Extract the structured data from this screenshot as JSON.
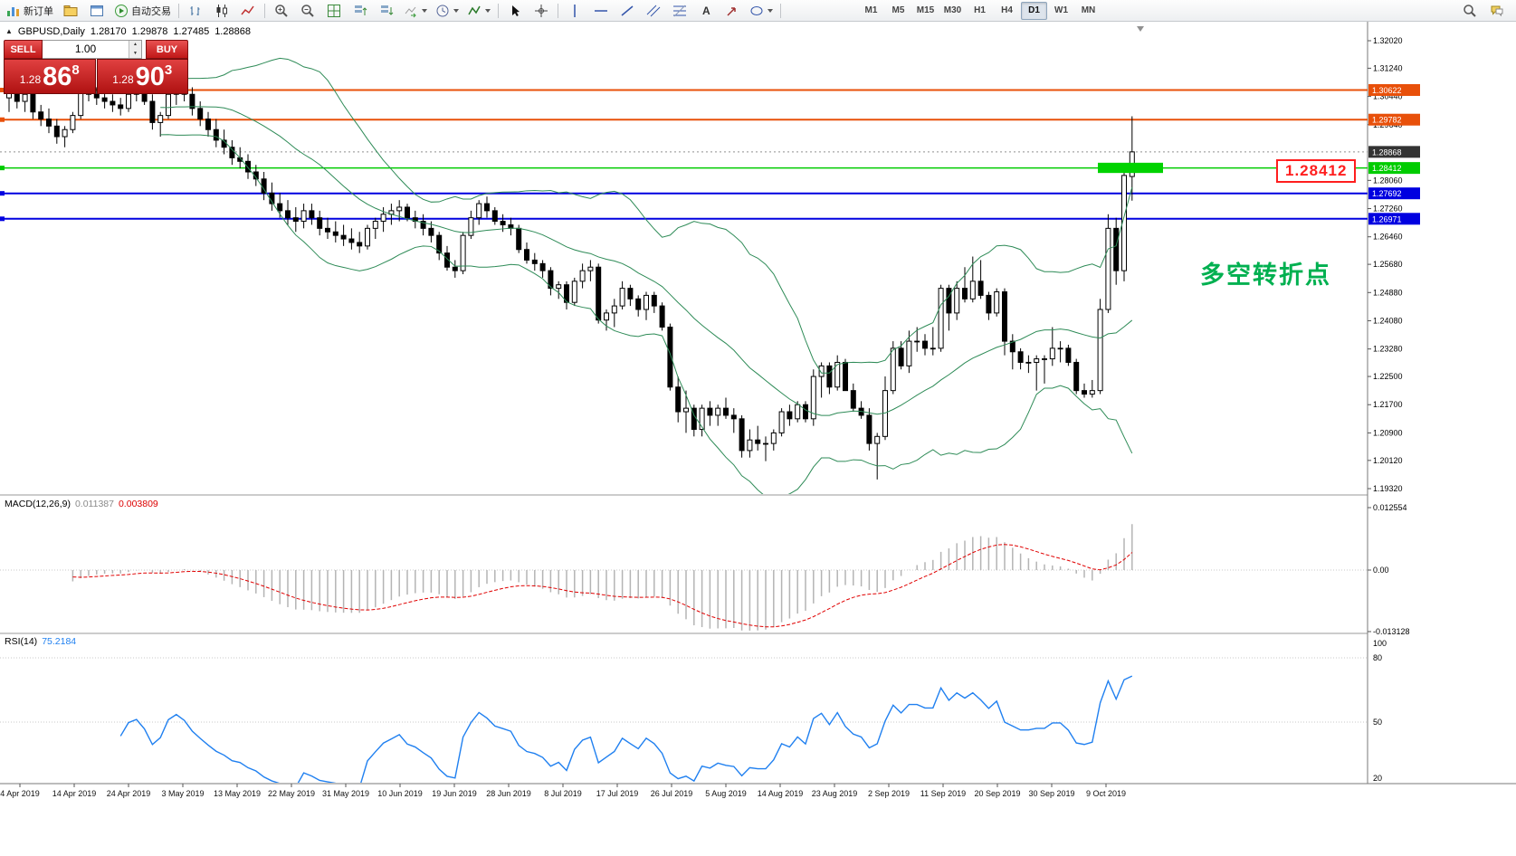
{
  "toolbar": {
    "items": [
      {
        "name": "new-order-button",
        "icon": "new-order-icon",
        "label": "新订单"
      },
      {
        "name": "profiles-button",
        "icon": "profiles-icon"
      },
      {
        "name": "data-window-button",
        "icon": "data-window-icon"
      },
      {
        "name": "auto-trading-button",
        "icon": "play-icon",
        "label": "自动交易"
      },
      {
        "sep": true
      },
      {
        "name": "bar-chart-button",
        "icon": "bar-chart-icon"
      },
      {
        "name": "candlestick-chart-button",
        "icon": "candlestick-icon"
      },
      {
        "name": "line-chart-button",
        "icon": "line-chart-icon"
      },
      {
        "sep": true
      },
      {
        "name": "zoom-in-button",
        "icon": "zoom-in-icon"
      },
      {
        "name": "zoom-out-button",
        "icon": "zoom-out-icon"
      },
      {
        "name": "tile-windows-button",
        "icon": "tile-windows-icon"
      },
      {
        "name": "arrange-up-button",
        "icon": "arrange-up-icon"
      },
      {
        "name": "arrange-down-button",
        "icon": "arrange-down-icon"
      },
      {
        "name": "auto-scroll-button",
        "icon": "auto-scroll-icon",
        "dropdown": true
      },
      {
        "name": "period-button",
        "icon": "clock-icon",
        "dropdown": true
      },
      {
        "name": "indicators-button",
        "icon": "indicators-icon",
        "dropdown": true
      },
      {
        "sep": true
      },
      {
        "name": "cursor-button",
        "icon": "cursor-icon"
      },
      {
        "name": "crosshair-button",
        "icon": "crosshair-icon"
      },
      {
        "sep": true
      },
      {
        "name": "vertical-line-button",
        "icon": "vertical-line-icon"
      },
      {
        "name": "horizontal-line-button",
        "icon": "horizontal-line-icon"
      },
      {
        "name": "trendline-button",
        "icon": "trendline-icon"
      },
      {
        "name": "channel-button",
        "icon": "channel-icon"
      },
      {
        "name": "fibonacci-button",
        "icon": "fibonacci-icon"
      },
      {
        "name": "text-button",
        "icon": "text-icon"
      },
      {
        "name": "arrows-button",
        "icon": "arrows-icon"
      },
      {
        "name": "shapes-button",
        "icon": "shapes-icon",
        "dropdown": true
      },
      {
        "sep": true
      }
    ],
    "timeframes": [
      "M1",
      "M5",
      "M15",
      "M30",
      "H1",
      "H4",
      "D1",
      "W1",
      "MN"
    ],
    "active_timeframe": "D1",
    "right_items": [
      {
        "name": "search-button",
        "icon": "search-icon"
      },
      {
        "name": "chat-button",
        "icon": "chat-icon"
      }
    ]
  },
  "trade_panel": {
    "sell_label": "SELL",
    "buy_label": "BUY",
    "volume": "1.00",
    "sell_price": {
      "prefix": "1.28",
      "big": "86",
      "pip": "8"
    },
    "buy_price": {
      "prefix": "1.28",
      "big": "90",
      "pip": "3"
    }
  },
  "chart": {
    "symbol": "GBPUSD,Daily",
    "open": "1.28170",
    "high": "1.29878",
    "low": "1.27485",
    "close": "1.28868",
    "annotation": "多空转折点",
    "price_alert_label": "1.28412",
    "current_price": {
      "value": 1.28868,
      "label": "1.28868",
      "color": "#333333"
    },
    "levels": [
      {
        "value": 1.30622,
        "label": "1.30622",
        "color": "#e8500a",
        "width": 2
      },
      {
        "value": 1.29782,
        "label": "1.29782",
        "color": "#e8500a",
        "width": 2
      },
      {
        "value": 1.28412,
        "label": "1.28412",
        "color": "#00cc00",
        "width": 1.5
      },
      {
        "value": 1.27692,
        "label": "1.27692",
        "color": "#0000e0",
        "width": 2
      },
      {
        "value": 1.26971,
        "label": "1.26971",
        "color": "#0000e0",
        "width": 2
      }
    ],
    "highlight_rect": {
      "x_from": 1213,
      "x_to": 1285,
      "price_top": 1.2856,
      "price_bottom": 1.2827,
      "color": "#00d300"
    },
    "y_ticks": [
      "1.32020",
      "1.31240",
      "1.30440",
      "1.29640",
      "1.28060",
      "1.27260",
      "1.26460",
      "1.25680",
      "1.24880",
      "1.24080",
      "1.23280",
      "1.22500",
      "1.21700",
      "1.20900",
      "1.20120",
      "1.19320"
    ],
    "dates": [
      "4 Apr 2019",
      "14 Apr 2019",
      "24 Apr 2019",
      "3 May 2019",
      "13 May 2019",
      "22 May 2019",
      "31 May 2019",
      "10 Jun 2019",
      "19 Jun 2019",
      "28 Jun 2019",
      "8 Jul 2019",
      "17 Jul 2019",
      "26 Jul 2019",
      "5 Aug 2019",
      "14 Aug 2019",
      "23 Aug 2019",
      "2 Sep 2019",
      "11 Sep 2019",
      "20 Sep 2019",
      "30 Sep 2019",
      "9 Oct 2019"
    ]
  },
  "macd": {
    "name": "MACD(12,26,9)",
    "main_value": "0.011387",
    "signal_value": "0.003809",
    "axis_labels": [
      "0.012554",
      "0.00",
      "-0.013128"
    ],
    "histogram_color": "#b4b4b4",
    "signal_color": "#e00000"
  },
  "rsi": {
    "name": "RSI(14)",
    "value": "75.2184",
    "axis_labels": [
      "100",
      "80",
      "50",
      "20"
    ],
    "line_color": "#2080f0"
  },
  "chart_data": {
    "type": "candlestick",
    "symbol": "GBPUSD",
    "timeframe": "D1",
    "y_range": [
      1.1932,
      1.3202
    ],
    "x_range_dates": [
      "4 Apr 2019",
      "18 Oct 2019"
    ],
    "indicators": [
      "Bollinger Bands (20,2)",
      "MACD(12,26,9)",
      "RSI(14)"
    ],
    "bb_color": "#2e8b57",
    "candles": [
      [
        1.304,
        1.307,
        1.3,
        1.3055
      ],
      [
        1.3055,
        1.3065,
        1.301,
        1.303
      ],
      [
        1.303,
        1.306,
        1.3,
        1.305
      ],
      [
        1.305,
        1.306,
        1.298,
        1.3
      ],
      [
        1.3,
        1.302,
        1.296,
        1.298
      ],
      [
        1.298,
        1.301,
        1.294,
        1.296
      ],
      [
        1.296,
        1.298,
        1.291,
        1.293
      ],
      [
        1.293,
        1.296,
        1.29,
        1.295
      ],
      [
        1.295,
        1.3,
        1.294,
        1.299
      ],
      [
        1.299,
        1.307,
        1.298,
        1.306
      ],
      [
        1.306,
        1.308,
        1.303,
        1.305
      ],
      [
        1.305,
        1.307,
        1.302,
        1.304
      ],
      [
        1.304,
        1.306,
        1.301,
        1.303
      ],
      [
        1.303,
        1.305,
        1.3,
        1.302
      ],
      [
        1.302,
        1.304,
        1.299,
        1.301
      ],
      [
        1.301,
        1.306,
        1.3,
        1.305
      ],
      [
        1.305,
        1.308,
        1.303,
        1.306
      ],
      [
        1.306,
        1.307,
        1.302,
        1.303
      ],
      [
        1.303,
        1.305,
        1.295,
        1.297
      ],
      [
        1.297,
        1.3,
        1.293,
        1.299
      ],
      [
        1.299,
        1.306,
        1.298,
        1.305
      ],
      [
        1.305,
        1.3085,
        1.302,
        1.307
      ],
      [
        1.307,
        1.308,
        1.303,
        1.305
      ],
      [
        1.305,
        1.307,
        1.299,
        1.301
      ],
      [
        1.301,
        1.303,
        1.296,
        1.298
      ],
      [
        1.298,
        1.3,
        1.293,
        1.295
      ],
      [
        1.295,
        1.298,
        1.29,
        1.292
      ],
      [
        1.292,
        1.295,
        1.288,
        1.29
      ],
      [
        1.29,
        1.292,
        1.285,
        1.287
      ],
      [
        1.287,
        1.29,
        1.284,
        1.286
      ],
      [
        1.286,
        1.288,
        1.281,
        1.283
      ],
      [
        1.283,
        1.285,
        1.279,
        1.281
      ],
      [
        1.281,
        1.283,
        1.275,
        1.277
      ],
      [
        1.277,
        1.28,
        1.272,
        1.274
      ],
      [
        1.274,
        1.277,
        1.27,
        1.272
      ],
      [
        1.272,
        1.275,
        1.268,
        1.27
      ],
      [
        1.27,
        1.273,
        1.266,
        1.269
      ],
      [
        1.269,
        1.274,
        1.267,
        1.272
      ],
      [
        1.272,
        1.274,
        1.268,
        1.27
      ],
      [
        1.27,
        1.272,
        1.265,
        1.267
      ],
      [
        1.267,
        1.27,
        1.264,
        1.266
      ],
      [
        1.266,
        1.269,
        1.263,
        1.265
      ],
      [
        1.265,
        1.268,
        1.262,
        1.264
      ],
      [
        1.264,
        1.267,
        1.261,
        1.263
      ],
      [
        1.263,
        1.266,
        1.26,
        1.262
      ],
      [
        1.262,
        1.268,
        1.261,
        1.267
      ],
      [
        1.267,
        1.27,
        1.264,
        1.269
      ],
      [
        1.269,
        1.273,
        1.266,
        1.271
      ],
      [
        1.271,
        1.274,
        1.268,
        1.272
      ],
      [
        1.272,
        1.275,
        1.269,
        1.273
      ],
      [
        1.273,
        1.274,
        1.269,
        1.27
      ],
      [
        1.27,
        1.272,
        1.267,
        1.269
      ],
      [
        1.269,
        1.271,
        1.265,
        1.267
      ],
      [
        1.267,
        1.269,
        1.263,
        1.265
      ],
      [
        1.265,
        1.266,
        1.258,
        1.26
      ],
      [
        1.26,
        1.262,
        1.255,
        1.256
      ],
      [
        1.256,
        1.258,
        1.253,
        1.255
      ],
      [
        1.255,
        1.266,
        1.254,
        1.265
      ],
      [
        1.265,
        1.272,
        1.264,
        1.27
      ],
      [
        1.27,
        1.275,
        1.268,
        1.274
      ],
      [
        1.274,
        1.276,
        1.27,
        1.272
      ],
      [
        1.272,
        1.273,
        1.268,
        1.269
      ],
      [
        1.269,
        1.271,
        1.266,
        1.268
      ],
      [
        1.268,
        1.27,
        1.265,
        1.267
      ],
      [
        1.267,
        1.268,
        1.26,
        1.261
      ],
      [
        1.261,
        1.263,
        1.257,
        1.258
      ],
      [
        1.258,
        1.26,
        1.255,
        1.257
      ],
      [
        1.257,
        1.258,
        1.253,
        1.255
      ],
      [
        1.255,
        1.256,
        1.248,
        1.25
      ],
      [
        1.25,
        1.252,
        1.247,
        1.251
      ],
      [
        1.251,
        1.252,
        1.244,
        1.246
      ],
      [
        1.246,
        1.253,
        1.245,
        1.252
      ],
      [
        1.252,
        1.257,
        1.25,
        1.255
      ],
      [
        1.255,
        1.258,
        1.252,
        1.256
      ],
      [
        1.256,
        1.257,
        1.24,
        1.241
      ],
      [
        1.241,
        1.244,
        1.238,
        1.243
      ],
      [
        1.243,
        1.247,
        1.239,
        1.245
      ],
      [
        1.245,
        1.252,
        1.244,
        1.25
      ],
      [
        1.25,
        1.251,
        1.245,
        1.247
      ],
      [
        1.247,
        1.248,
        1.242,
        1.244
      ],
      [
        1.244,
        1.249,
        1.241,
        1.248
      ],
      [
        1.248,
        1.249,
        1.243,
        1.245
      ],
      [
        1.245,
        1.246,
        1.238,
        1.239
      ],
      [
        1.239,
        1.24,
        1.221,
        1.222
      ],
      [
        1.222,
        1.225,
        1.212,
        1.215
      ],
      [
        1.215,
        1.221,
        1.209,
        1.216
      ],
      [
        1.216,
        1.217,
        1.208,
        1.21
      ],
      [
        1.21,
        1.217,
        1.208,
        1.216
      ],
      [
        1.216,
        1.218,
        1.211,
        1.214
      ],
      [
        1.214,
        1.217,
        1.211,
        1.216
      ],
      [
        1.216,
        1.219,
        1.213,
        1.214
      ],
      [
        1.214,
        1.216,
        1.209,
        1.213
      ],
      [
        1.213,
        1.214,
        1.202,
        1.204
      ],
      [
        1.204,
        1.21,
        1.202,
        1.207
      ],
      [
        1.207,
        1.211,
        1.204,
        1.206
      ],
      [
        1.206,
        1.208,
        1.201,
        1.206
      ],
      [
        1.206,
        1.21,
        1.204,
        1.209
      ],
      [
        1.209,
        1.216,
        1.208,
        1.215
      ],
      [
        1.215,
        1.217,
        1.211,
        1.213
      ],
      [
        1.213,
        1.218,
        1.212,
        1.217
      ],
      [
        1.217,
        1.218,
        1.212,
        1.213
      ],
      [
        1.213,
        1.227,
        1.211,
        1.225
      ],
      [
        1.225,
        1.229,
        1.219,
        1.228
      ],
      [
        1.228,
        1.229,
        1.22,
        1.222
      ],
      [
        1.222,
        1.231,
        1.221,
        1.229
      ],
      [
        1.229,
        1.23,
        1.221,
        1.221
      ],
      [
        1.221,
        1.223,
        1.215,
        1.216
      ],
      [
        1.216,
        1.218,
        1.213,
        1.214
      ],
      [
        1.214,
        1.216,
        1.204,
        1.206
      ],
      [
        1.206,
        1.209,
        1.1958,
        1.208
      ],
      [
        1.208,
        1.225,
        1.207,
        1.221
      ],
      [
        1.221,
        1.235,
        1.22,
        1.233
      ],
      [
        1.233,
        1.235,
        1.227,
        1.228
      ],
      [
        1.228,
        1.238,
        1.226,
        1.235
      ],
      [
        1.235,
        1.239,
        1.232,
        1.235
      ],
      [
        1.235,
        1.237,
        1.231,
        1.233
      ],
      [
        1.233,
        1.239,
        1.231,
        1.233
      ],
      [
        1.233,
        1.251,
        1.232,
        1.25
      ],
      [
        1.25,
        1.251,
        1.238,
        1.243
      ],
      [
        1.243,
        1.252,
        1.241,
        1.25
      ],
      [
        1.25,
        1.256,
        1.246,
        1.247
      ],
      [
        1.247,
        1.259,
        1.246,
        1.252
      ],
      [
        1.252,
        1.258,
        1.247,
        1.248
      ],
      [
        1.248,
        1.249,
        1.241,
        1.243
      ],
      [
        1.243,
        1.25,
        1.242,
        1.249
      ],
      [
        1.249,
        1.25,
        1.231,
        1.235
      ],
      [
        1.235,
        1.237,
        1.227,
        1.232
      ],
      [
        1.232,
        1.233,
        1.227,
        1.229
      ],
      [
        1.229,
        1.231,
        1.226,
        1.229
      ],
      [
        1.229,
        1.231,
        1.221,
        1.23
      ],
      [
        1.23,
        1.231,
        1.223,
        1.23
      ],
      [
        1.23,
        1.239,
        1.228,
        1.233
      ],
      [
        1.233,
        1.235,
        1.229,
        1.233
      ],
      [
        1.233,
        1.234,
        1.228,
        1.229
      ],
      [
        1.229,
        1.23,
        1.22,
        1.221
      ],
      [
        1.221,
        1.223,
        1.219,
        1.22
      ],
      [
        1.22,
        1.224,
        1.219,
        1.221
      ],
      [
        1.221,
        1.247,
        1.22,
        1.244
      ],
      [
        1.244,
        1.271,
        1.243,
        1.267
      ],
      [
        1.267,
        1.27,
        1.251,
        1.255
      ],
      [
        1.255,
        1.284,
        1.252,
        1.282
      ],
      [
        1.2817,
        1.29878,
        1.27485,
        1.28868
      ]
    ]
  }
}
